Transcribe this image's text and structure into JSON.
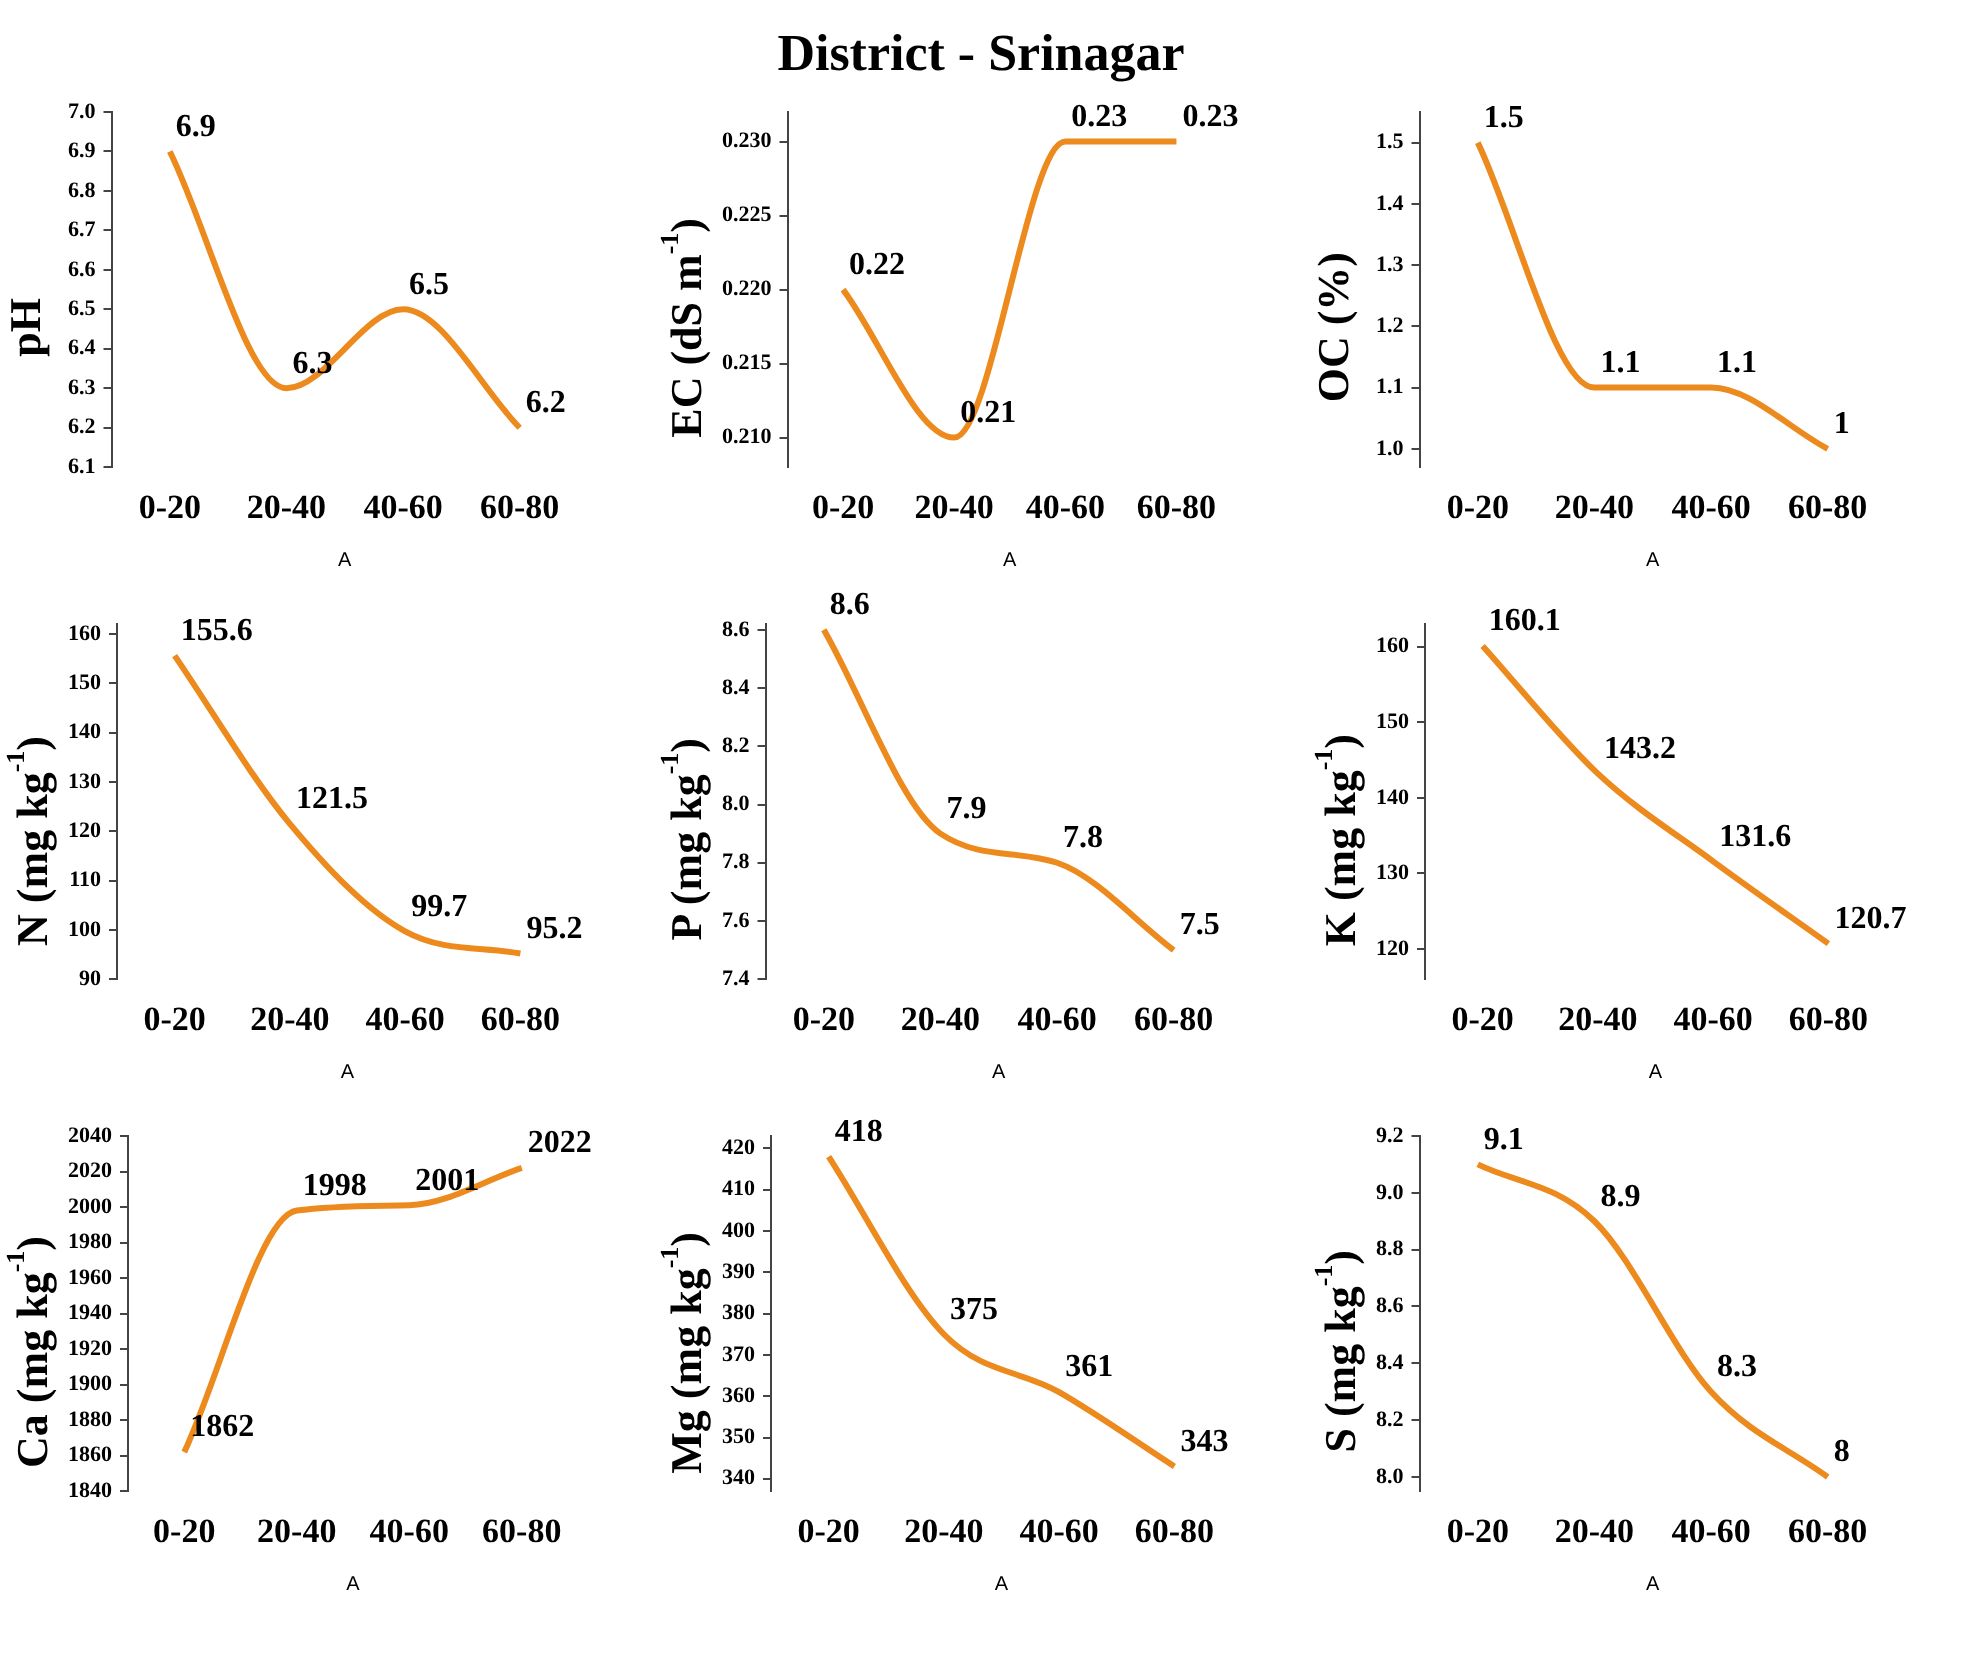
{
  "chart_data": [
    {
      "type": "line",
      "xlabel": "A",
      "ylabel": "pH",
      "categories": [
        "0-20",
        "20-40",
        "40-60",
        "60-80"
      ],
      "values": [
        6.9,
        6.3,
        6.5,
        6.2
      ],
      "color": "#ec8a1e",
      "ylim": [
        6.1,
        7.0
      ],
      "yticks": [
        6.1,
        6.2,
        6.3,
        6.4,
        6.5,
        6.6,
        6.7,
        6.8,
        6.9,
        {
          "value": 7.0,
          "label": "7.0"
        }
      ],
      "data_labels": true,
      "marker": "none",
      "grid": false,
      "legend": false
    },
    {
      "type": "line",
      "title": "District - Srinagar",
      "xlabel": "A",
      "ylabel": "EC (dS m$^{-1}$)",
      "categories": [
        "0-20",
        "20-40",
        "40-60",
        "60-80"
      ],
      "values": [
        0.22,
        0.21,
        0.23,
        0.23
      ],
      "color": "#ec8a1e",
      "ylim": [
        0.208,
        0.232
      ],
      "yticks": [
        {
          "value": 0.21,
          "label": "0.210"
        },
        0.215,
        {
          "value": 0.22,
          "label": "0.220"
        },
        0.225,
        {
          "value": 0.23,
          "label": "0.230"
        }
      ],
      "data_labels": true,
      "marker": "none",
      "grid": false,
      "legend": false
    },
    {
      "type": "line",
      "xlabel": "A",
      "ylabel": "OC (%)",
      "categories": [
        "0-20",
        "20-40",
        "40-60",
        "60-80"
      ],
      "values": [
        1.5,
        1.1,
        1.1,
        1
      ],
      "color": "#ec8a1e",
      "ylim": [
        0.97,
        1.55
      ],
      "yticks": [
        {
          "value": 1.0,
          "label": "1.0"
        },
        1.1,
        1.2,
        1.3,
        1.4,
        1.5
      ],
      "data_labels": true,
      "marker": "none",
      "grid": false,
      "legend": false
    },
    {
      "type": "line",
      "xlabel": "A",
      "ylabel": "N (mg kg$^{-1}$)",
      "categories": [
        "0-20",
        "20-40",
        "40-60",
        "60-80"
      ],
      "values": [
        155.6,
        121.5,
        99.7,
        95.2
      ],
      "color": "#ec8a1e",
      "ylim": [
        90,
        162
      ],
      "yticks": [
        90,
        100,
        110,
        120,
        130,
        140,
        150,
        160
      ],
      "data_labels": true,
      "marker": "none",
      "grid": false,
      "legend": false
    },
    {
      "type": "line",
      "xlabel": "A",
      "ylabel": "P (mg kg$^{-1}$)",
      "categories": [
        "0-20",
        "20-40",
        "40-60",
        "60-80"
      ],
      "values": [
        8.6,
        7.9,
        7.8,
        7.5
      ],
      "color": "#ec8a1e",
      "ylim": [
        7.4,
        8.62
      ],
      "yticks": [
        7.4,
        7.6,
        7.8,
        {
          "value": 8.0,
          "label": "8.0"
        },
        8.2,
        8.4,
        8.6
      ],
      "data_labels": true,
      "marker": "none",
      "grid": false,
      "legend": false
    },
    {
      "type": "line",
      "xlabel": "A",
      "ylabel": "K (mg kg$^{-1}$)",
      "categories": [
        "0-20",
        "20-40",
        "40-60",
        "60-80"
      ],
      "values": [
        160.1,
        143.2,
        131.6,
        120.7
      ],
      "color": "#ec8a1e",
      "ylim": [
        116,
        163
      ],
      "yticks": [
        120,
        130,
        140,
        150,
        160
      ],
      "data_labels": true,
      "marker": "none",
      "grid": false,
      "legend": false
    },
    {
      "type": "line",
      "xlabel": "A",
      "ylabel": "Ca (mg kg$^{-1}$)",
      "categories": [
        "0-20",
        "20-40",
        "40-60",
        "60-80"
      ],
      "values": [
        1862,
        1998,
        2001,
        2022
      ],
      "color": "#ec8a1e",
      "ylim": [
        1840,
        2040
      ],
      "yticks": [
        1840,
        1860,
        1880,
        1900,
        1920,
        1940,
        1960,
        1980,
        2000,
        2020,
        2040
      ],
      "data_labels": true,
      "marker": "none",
      "grid": false,
      "legend": false
    },
    {
      "type": "line",
      "xlabel": "A",
      "ylabel": "Mg (mg kg$^{-1}$)",
      "categories": [
        "0-20",
        "20-40",
        "40-60",
        "60-80"
      ],
      "values": [
        418,
        375,
        361,
        343
      ],
      "color": "#ec8a1e",
      "ylim": [
        337,
        423
      ],
      "yticks": [
        340,
        350,
        360,
        370,
        380,
        390,
        400,
        410,
        420
      ],
      "data_labels": true,
      "marker": "none",
      "grid": false,
      "legend": false
    },
    {
      "type": "line",
      "xlabel": "A",
      "ylabel": "S (mg kg$^{-1}$)",
      "categories": [
        "0-20",
        "20-40",
        "40-60",
        "60-80"
      ],
      "values": [
        9.1,
        8.9,
        8.3,
        8
      ],
      "color": "#ec8a1e",
      "ylim": [
        7.95,
        9.2
      ],
      "yticks": [
        {
          "value": 8.0,
          "label": "8.0"
        },
        8.2,
        8.4,
        8.6,
        8.8,
        {
          "value": 9.0,
          "label": "9.0"
        },
        9.2
      ],
      "data_labels": true,
      "marker": "none",
      "grid": false,
      "legend": false
    }
  ]
}
